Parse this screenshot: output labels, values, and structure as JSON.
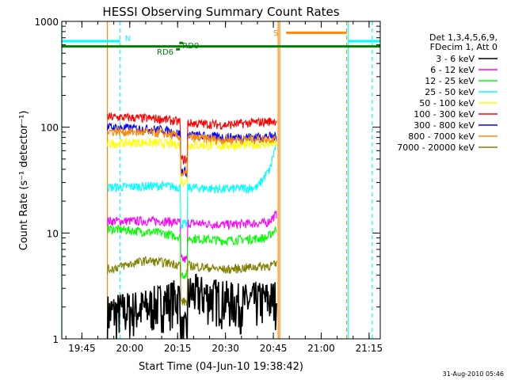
{
  "chart_data": {
    "type": "line",
    "title": "HESSI Observing Summary Count Rates",
    "xlabel": "Start Time (04-Jun-10 19:38:42)",
    "ylabel": "Count Rate (s⁻¹ detector⁻¹)",
    "yscale": "log",
    "ylim": [
      1,
      1000
    ],
    "xlim": [
      "19:38:42",
      "21:18:30"
    ],
    "x_ticks": [
      "19:45",
      "20:00",
      "20:15",
      "20:30",
      "20:45",
      "21:00",
      "21:15"
    ],
    "y_ticks": [
      "1",
      "10",
      "100",
      "1000"
    ],
    "grid": false,
    "legend_position": "right",
    "legend_header": [
      "Det 1,3,4,5,6,9,",
      "FDecim 1, Att 0"
    ],
    "timestamp": "31-Aug-2010 05:46",
    "annotations": {
      "n": "N",
      "s": "S",
      "rd0": "RD0",
      "rd6": "RD6"
    },
    "bands": {
      "n": {
        "segments": [
          [
            "19:38:42",
            "19:57:00"
          ],
          [
            "21:08:30",
            "21:18:30"
          ]
        ],
        "y": 650,
        "color": "#00ffff"
      },
      "s": {
        "segments": [
          [
            "20:49:00",
            "21:08:00"
          ]
        ],
        "y": 780,
        "color": "#ff8800"
      },
      "saa": {
        "segments": [
          [
            "19:38:42",
            "21:18:30"
          ]
        ],
        "y": 580,
        "color": "#008000"
      }
    },
    "vlines": [
      {
        "t": "19:38:42",
        "color": "#00ffff",
        "dashed": false
      },
      {
        "t": "19:57:00",
        "color": "#00ffff",
        "dashed": true
      },
      {
        "t": "21:08:30",
        "color": "#00ffff",
        "dashed": false
      },
      {
        "t": "21:16:00",
        "color": "#00ffff",
        "dashed": true
      },
      {
        "t": "20:47:00",
        "color": "#ff8800",
        "dashed": false
      },
      {
        "t": "21:08:00",
        "color": "#ff8800",
        "dashed": true
      },
      {
        "t": "19:53:00",
        "color": "#ff8800",
        "dashed": false
      },
      {
        "t": "20:46:30",
        "color": "#ff8800",
        "dashed": false
      }
    ],
    "series": [
      {
        "name": "3 - 6 keV",
        "color": "#000000",
        "noisy": true,
        "points": [
          [
            "19:53:00",
            1.6
          ],
          [
            "20:05",
            1.8
          ],
          [
            "20:20",
            2.5
          ],
          [
            "20:35",
            2.0
          ],
          [
            "20:46:00",
            2.2
          ]
        ]
      },
      {
        "name": "6 - 12 keV",
        "color": "#ff00ff",
        "noisy": false,
        "points": [
          [
            "19:53:00",
            13
          ],
          [
            "20:10",
            13
          ],
          [
            "20:17",
            12.5
          ],
          [
            "20:30",
            12
          ],
          [
            "20:43",
            12.5
          ],
          [
            "20:46:00",
            15
          ]
        ]
      },
      {
        "name": "12 - 25 keV",
        "color": "#00ff00",
        "noisy": false,
        "points": [
          [
            "19:53:00",
            11
          ],
          [
            "20:10",
            10
          ],
          [
            "20:17",
            9
          ],
          [
            "20:30",
            8.5
          ],
          [
            "20:43",
            9
          ],
          [
            "20:46:00",
            11
          ]
        ]
      },
      {
        "name": "25 - 50 keV",
        "color": "#00ffff",
        "noisy": false,
        "points": [
          [
            "19:53:00",
            27
          ],
          [
            "20:10",
            28
          ],
          [
            "20:17",
            27
          ],
          [
            "20:30",
            26
          ],
          [
            "20:40",
            27
          ],
          [
            "20:44",
            40
          ],
          [
            "20:46:00",
            70
          ]
        ]
      },
      {
        "name": "50 - 100 keV",
        "color": "#ffff00",
        "noisy": false,
        "points": [
          [
            "19:53:00",
            70
          ],
          [
            "20:05",
            72
          ],
          [
            "20:17",
            68
          ],
          [
            "20:30",
            67
          ],
          [
            "20:46:00",
            70
          ]
        ]
      },
      {
        "name": "100 - 300 keV",
        "color": "#ff0000",
        "noisy": false,
        "points": [
          [
            "19:53:00",
            125
          ],
          [
            "20:10",
            120
          ],
          [
            "20:17",
            110
          ],
          [
            "20:30",
            105
          ],
          [
            "20:46:00",
            115
          ]
        ]
      },
      {
        "name": "300 - 800 keV",
        "color": "#0000ff",
        "noisy": false,
        "points": [
          [
            "19:53:00",
            100
          ],
          [
            "20:10",
            95
          ],
          [
            "20:17",
            85
          ],
          [
            "20:30",
            80
          ],
          [
            "20:46:00",
            82
          ]
        ]
      },
      {
        "name": "800 - 7000 keV",
        "color": "#ff8800",
        "noisy": false,
        "points": [
          [
            "19:53:00",
            92
          ],
          [
            "20:10",
            88
          ],
          [
            "20:17",
            80
          ],
          [
            "20:30",
            76
          ],
          [
            "20:46:00",
            78
          ]
        ]
      },
      {
        "name": "7000 - 20000 keV",
        "color": "#808000",
        "noisy": false,
        "points": [
          [
            "19:53:00",
            4.5
          ],
          [
            "20:05",
            5.5
          ],
          [
            "20:17",
            5.0
          ],
          [
            "20:30",
            4.5
          ],
          [
            "20:46:00",
            5.0
          ]
        ]
      }
    ]
  }
}
